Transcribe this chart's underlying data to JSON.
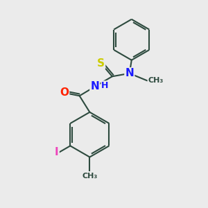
{
  "background_color": "#ebebeb",
  "bond_color": "#2d4a3e",
  "line_width": 1.5,
  "atom_colors": {
    "N": "#1a1aff",
    "O": "#ff2200",
    "S": "#cccc00",
    "I": "#ee44bb",
    "H": "#1a1aff"
  },
  "font_size_atoms": 11,
  "font_size_small": 9,
  "xlim": [
    0,
    10
  ],
  "ylim": [
    0,
    10
  ]
}
